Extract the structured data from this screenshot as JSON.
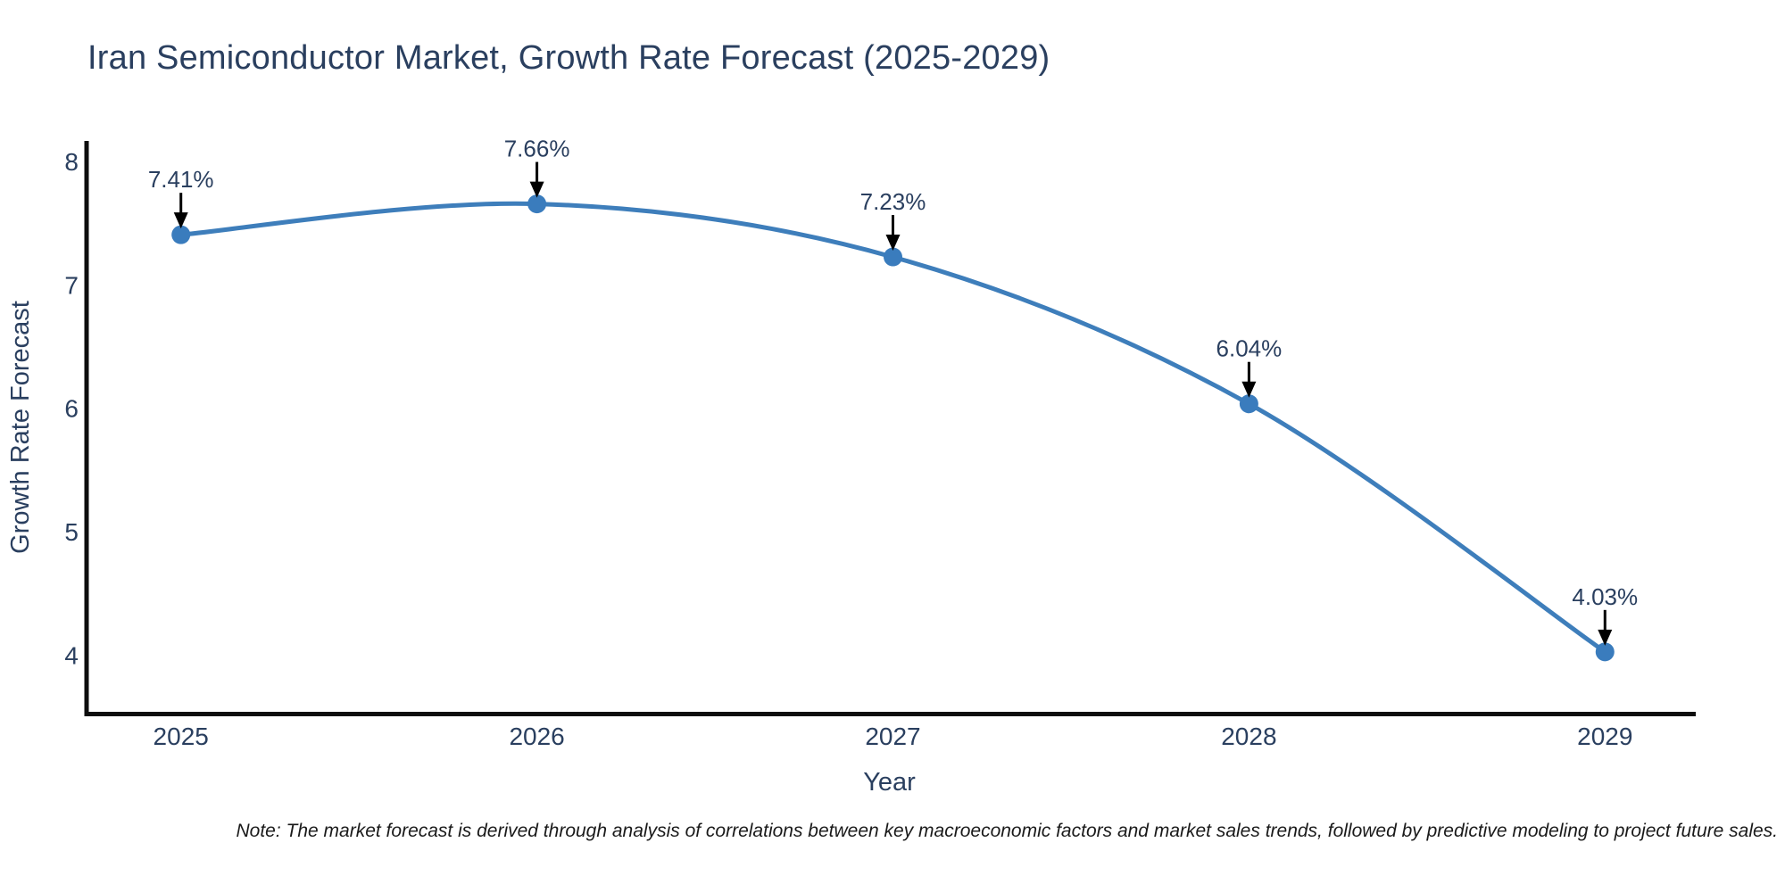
{
  "title": {
    "text": "Iran Semiconductor Market, Growth Rate Forecast (2025-2029)",
    "color": "#2a3f5f"
  },
  "note": {
    "text": "Note: The market forecast is derived through analysis of correlations between key macroeconomic factors and market sales trends, followed by predictive modeling to project future sales."
  },
  "chart_data": {
    "type": "line",
    "title": "Iran Semiconductor Market, Growth Rate Forecast (2025-2029)",
    "x": [
      2025,
      2026,
      2027,
      2028,
      2029
    ],
    "x_tick_labels": [
      "2025",
      "2026",
      "2027",
      "2028",
      "2029"
    ],
    "series": [
      {
        "name": "Growth Rate Forecast",
        "values": [
          7.41,
          7.66,
          7.23,
          6.04,
          4.03
        ]
      }
    ],
    "point_labels": [
      "7.41%",
      "7.66%",
      "7.23%",
      "6.04%",
      "4.03%"
    ],
    "xlabel": "Year",
    "ylabel": "Growth Rate Forecast",
    "y_ticks": [
      4,
      5,
      6,
      7,
      8
    ],
    "xlim": [
      2024.735,
      2029.255
    ],
    "ylim": [
      3.53,
      8.17
    ],
    "line_shape": "spline",
    "grid": false,
    "legend": "none",
    "colors": {
      "line": "#3e7ebb",
      "marker": "#3a7cbd",
      "axis": "#0d0d0d",
      "tick_text": "#2a3f5f",
      "axis_title_text": "#2a3f5f",
      "annotation_text": "#2a3f5f",
      "annotation_arrow": "#000000"
    }
  }
}
